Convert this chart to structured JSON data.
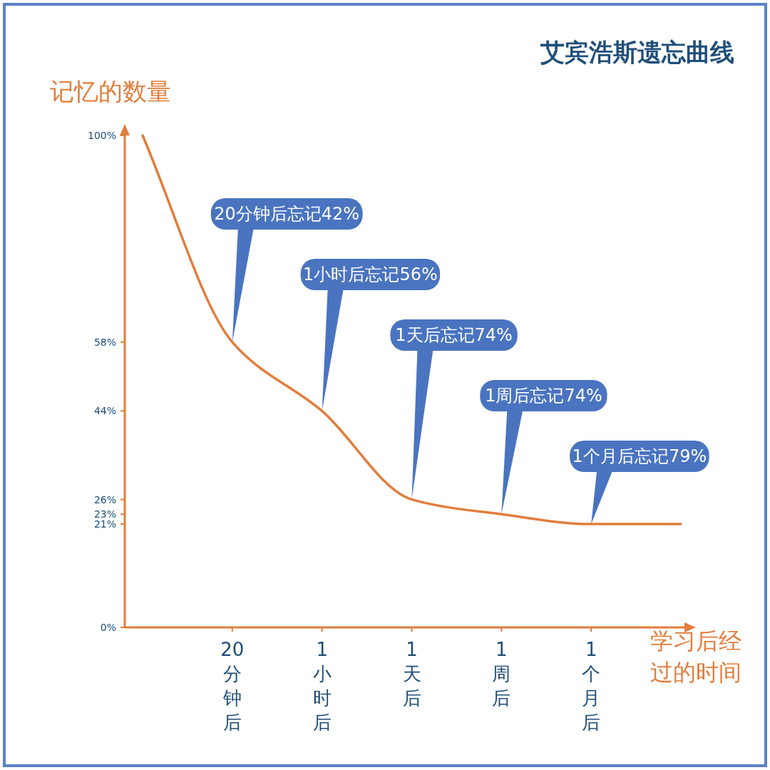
{
  "chart_data": {
    "type": "line",
    "title": "艾宾浩斯遗忘曲线",
    "ylabel": "记忆的数量",
    "xlabel": "学习后经过的时间",
    "categories": [
      null,
      "20分钟后",
      "1小时后",
      "1天后",
      "1周后",
      "1个月后",
      null
    ],
    "series": [
      {
        "color": "#e27d3c",
        "values": [
          100,
          58,
          44,
          26,
          23,
          21,
          21
        ]
      }
    ],
    "ylim": [
      0,
      100
    ],
    "yticks": [
      {
        "value": 0,
        "label": "0%"
      },
      {
        "value": 21,
        "label": "21%"
      },
      {
        "value": 23,
        "label": "23%"
      },
      {
        "value": 26,
        "label": "26%"
      },
      {
        "value": 44,
        "label": "44%"
      },
      {
        "value": 58,
        "label": "58%"
      },
      {
        "value": 100,
        "label": "100%"
      }
    ],
    "annotations": [
      {
        "text": "20分钟后忘记42%",
        "x": "20分钟后",
        "y": 58
      },
      {
        "text": "1小时后忘记56%",
        "x": "1小时后",
        "y": 44
      },
      {
        "text": "1天后忘记74%",
        "x": "1天后",
        "y": 26
      },
      {
        "text": "1周后忘记74%",
        "x": "1周后",
        "y": 23
      },
      {
        "text": "1个月后忘记79%",
        "x": "1个月后",
        "y": 21
      }
    ],
    "grid": false,
    "marker": "none",
    "line_style": "solid"
  }
}
